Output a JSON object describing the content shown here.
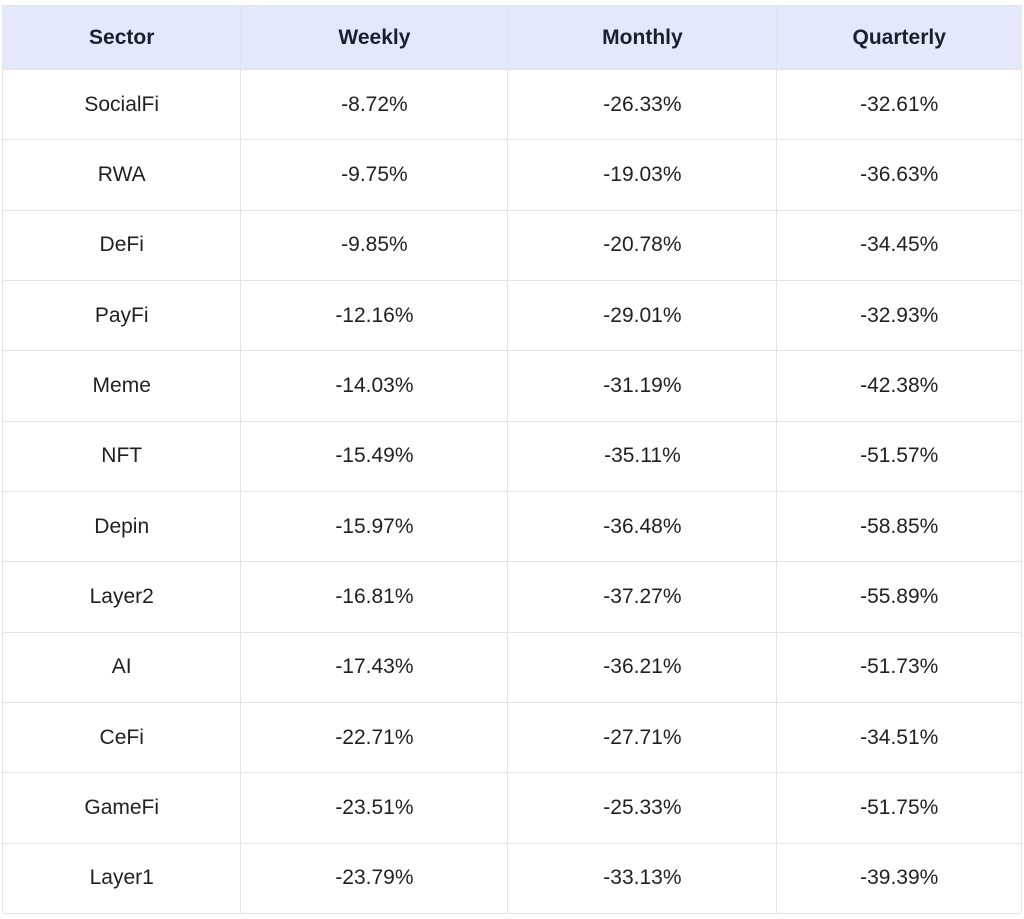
{
  "colors": {
    "header_bg": "#e3e9fb",
    "header_text": "#1b1f2e",
    "cell_text": "#1f2023",
    "grid_border": "#e4e4e4",
    "outer_border": "#d7d7d7",
    "page_bg": "#ffffff"
  },
  "table": {
    "columns": [
      "Sector",
      "Weekly",
      "Monthly",
      "Quarterly"
    ],
    "rows": [
      [
        "SocialFi",
        "-8.72%",
        "-26.33%",
        "-32.61%"
      ],
      [
        "RWA",
        "-9.75%",
        "-19.03%",
        "-36.63%"
      ],
      [
        "DeFi",
        "-9.85%",
        "-20.78%",
        "-34.45%"
      ],
      [
        "PayFi",
        "-12.16%",
        "-29.01%",
        "-32.93%"
      ],
      [
        "Meme",
        "-14.03%",
        "-31.19%",
        "-42.38%"
      ],
      [
        "NFT",
        "-15.49%",
        "-35.11%",
        "-51.57%"
      ],
      [
        "Depin",
        "-15.97%",
        "-36.48%",
        "-58.85%"
      ],
      [
        "Layer2",
        "-16.81%",
        "-37.27%",
        "-55.89%"
      ],
      [
        "AI",
        "-17.43%",
        "-36.21%",
        "-51.73%"
      ],
      [
        "CeFi",
        "-22.71%",
        "-27.71%",
        "-34.51%"
      ],
      [
        "GameFi",
        "-23.51%",
        "-25.33%",
        "-51.75%"
      ],
      [
        "Layer1",
        "-23.79%",
        "-33.13%",
        "-39.39%"
      ]
    ]
  },
  "chart_data": {
    "type": "table",
    "title": "",
    "columns": [
      "Sector",
      "Weekly",
      "Monthly",
      "Quarterly"
    ],
    "categories": [
      "SocialFi",
      "RWA",
      "DeFi",
      "PayFi",
      "Meme",
      "NFT",
      "Depin",
      "Layer2",
      "AI",
      "CeFi",
      "GameFi",
      "Layer1"
    ],
    "series": [
      {
        "name": "Weekly",
        "values": [
          -8.72,
          -9.75,
          -9.85,
          -12.16,
          -14.03,
          -15.49,
          -15.97,
          -16.81,
          -17.43,
          -22.71,
          -23.51,
          -23.79
        ]
      },
      {
        "name": "Monthly",
        "values": [
          -26.33,
          -19.03,
          -20.78,
          -29.01,
          -31.19,
          -35.11,
          -36.48,
          -37.27,
          -36.21,
          -27.71,
          -25.33,
          -33.13
        ]
      },
      {
        "name": "Quarterly",
        "values": [
          -32.61,
          -36.63,
          -34.45,
          -32.93,
          -42.38,
          -51.57,
          -58.85,
          -55.89,
          -51.73,
          -34.51,
          -51.75,
          -39.39
        ]
      }
    ],
    "unit": "%"
  }
}
